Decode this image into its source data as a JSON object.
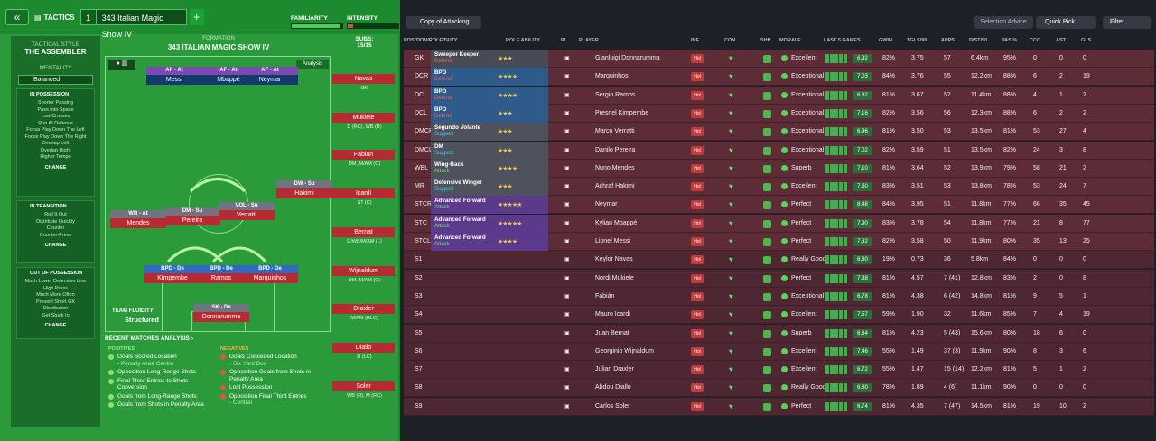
{
  "header": {
    "tactics_label": "TACTICS",
    "slot": "1",
    "name": "343 Italian Magic Show IV",
    "plus": "+",
    "back": "«",
    "familiarity": "FAMILIARITY",
    "intensity": "INTENSITY"
  },
  "style": {
    "style_label": "TACTICAL STYLE",
    "style_value": "THE ASSEMBLER",
    "mentality_label": "MENTALITY",
    "mentality_value": "Balanced",
    "poss": {
      "title": "IN POSSESSION",
      "items": [
        "Shorter Passing",
        "Pass Into Space",
        "Low Crosses",
        "Run At Defence",
        "Focus Play Down The Left",
        "Focus Play Down The Right",
        "Overlap Left",
        "Overlap Right",
        "Higher Tempo"
      ],
      "change": "CHANGE"
    },
    "trans": {
      "title": "IN TRANSITION",
      "items": [
        "Roll It Out",
        "Distribute Quickly",
        "Counter",
        "Counter-Press"
      ],
      "change": "CHANGE"
    },
    "oop": {
      "title": "OUT OF POSSESSION",
      "items": [
        "Much Lower Defensive Line",
        "High Press",
        "Much More Often",
        "Prevent Short GK",
        "Distribution",
        "Get Stuck In"
      ],
      "change": "CHANGE"
    }
  },
  "formation": {
    "label": "FORMATION",
    "name": "343 ITALIAN MAGIC SHOW IV",
    "analysis": "Analysis",
    "fluidity_label": "TEAM FLUIDITY",
    "fluidity_value": "Structured",
    "players": [
      {
        "pos": "AF - At",
        "name": "Messi"
      },
      {
        "pos": "AF - At",
        "name": "Mbappé"
      },
      {
        "pos": "AF - At",
        "name": "Neymar"
      },
      {
        "pos": "DW - Su",
        "name": "Hakimi"
      },
      {
        "pos": "DM - Su",
        "name": "Pereira"
      },
      {
        "pos": "VOL - Su",
        "name": "Verratti"
      },
      {
        "pos": "WB - At",
        "name": "Mendes"
      },
      {
        "pos": "BPD - De",
        "name": "Kimpembe"
      },
      {
        "pos": "BPD - De",
        "name": "Ramos"
      },
      {
        "pos": "BPD - De",
        "name": "Marquinhos"
      },
      {
        "pos": "SK - De",
        "name": "Donnarumma"
      }
    ]
  },
  "subs": {
    "label": "SUBS:",
    "count": "15/15",
    "list": [
      {
        "name": "Navas",
        "pos": "GK"
      },
      {
        "name": "Mukiele",
        "pos": "D (RC), WB (R)"
      },
      {
        "name": "Fabián",
        "pos": "DM, M/AM (C)"
      },
      {
        "name": "Icardi",
        "pos": "ST (C)"
      },
      {
        "name": "Bernat",
        "pos": "D/WB/M/AM (L)"
      },
      {
        "name": "Wijnaldum",
        "pos": "DM, M/AM (C)"
      },
      {
        "name": "Draxler",
        "pos": "M/AM (RLC)"
      },
      {
        "name": "Diallo",
        "pos": "D (LC)"
      },
      {
        "name": "Soler",
        "pos": "WB (R), M (RC)"
      }
    ]
  },
  "recent": {
    "title": "RECENT MATCHES ANALYSIS",
    "arrow": "›",
    "pos_label": "POSITIVES",
    "neg_label": "NEGATIVES",
    "positives": [
      {
        "t": "Goals Scored Location",
        "s": "- Penalty Area Centre"
      },
      {
        "t": "Opposition Long-Range Shots",
        "s": ""
      },
      {
        "t": "Final Third Entries to Shots Conversion",
        "s": ""
      },
      {
        "t": "Goals from Long-Range Shots",
        "s": ""
      },
      {
        "t": "Goals from Shots in Penalty Area",
        "s": ""
      }
    ],
    "negatives": [
      {
        "t": "Goals Conceded Location",
        "s": "- Six Yard Box"
      },
      {
        "t": "Opposition Goals from Shots in Penalty Area",
        "s": ""
      },
      {
        "t": "Lost Possession",
        "s": ""
      },
      {
        "t": "Opposition Final Third Entries",
        "s": "- Central"
      }
    ]
  },
  "toolbar": {
    "copy": "Copy of Attacking",
    "selection": "Selection Advice",
    "quick": "Quick Pick",
    "filter": "Filter"
  },
  "columns": [
    "POSITION/ROLE/DUTY",
    "ROLE ABILITY",
    "PI",
    "PLAYER",
    "INF",
    "CON",
    "SHP",
    "MORALE",
    "LAST 5 GAMES",
    "GWIN",
    "TGLS/90",
    "APPS",
    "DIST/90",
    "PAS %",
    "CCC",
    "AST",
    "GLS"
  ],
  "rows": [
    {
      "pos": "GK",
      "role": "Sweeper Keeper",
      "duty": "Defend",
      "cls": "gk",
      "stars": "★★★",
      "player": "Gianluigi Donnarumma",
      "morale": "Excellent",
      "avg": "6.92",
      "gwin": "82%",
      "tgls": "3.75",
      "apps": "57",
      "dist": "6.4km",
      "pas": "95%",
      "ccc": "0",
      "ast": "0",
      "gls": "0"
    },
    {
      "pos": "DCR",
      "role": "BPD",
      "duty": "Defend",
      "cls": "def",
      "stars": "★★★★",
      "player": "Marquinhos",
      "morale": "Exceptional",
      "avg": "7.03",
      "gwin": "84%",
      "tgls": "3.76",
      "apps": "55",
      "dist": "12.2km",
      "pas": "88%",
      "ccc": "6",
      "ast": "2",
      "gls": "19"
    },
    {
      "pos": "DC",
      "role": "BPD",
      "duty": "Defend",
      "cls": "def",
      "stars": "★★★★",
      "player": "Sergio Ramos",
      "morale": "Exceptional",
      "avg": "6.82",
      "gwin": "81%",
      "tgls": "3.67",
      "apps": "52",
      "dist": "11.4km",
      "pas": "88%",
      "ccc": "4",
      "ast": "1",
      "gls": "2"
    },
    {
      "pos": "DCL",
      "role": "BPD",
      "duty": "Defend",
      "cls": "def",
      "stars": "★★★",
      "player": "Presnel Kimpembe",
      "morale": "Exceptional",
      "avg": "7.16",
      "gwin": "82%",
      "tgls": "3.56",
      "apps": "56",
      "dist": "12.3km",
      "pas": "88%",
      "ccc": "6",
      "ast": "2",
      "gls": "2"
    },
    {
      "pos": "DMCR",
      "role": "Segundo Volante",
      "duty": "Support",
      "cls": "mid",
      "stars": "★★★",
      "player": "Marco Verratti",
      "morale": "Exceptional",
      "avg": "6.96",
      "gwin": "81%",
      "tgls": "3.50",
      "apps": "53",
      "dist": "13.5km",
      "pas": "81%",
      "ccc": "53",
      "ast": "27",
      "gls": "4"
    },
    {
      "pos": "DMCL",
      "role": "DM",
      "duty": "Support",
      "cls": "mid",
      "stars": "★★★",
      "player": "Danilo Pereira",
      "morale": "Exceptional",
      "avg": "7.02",
      "gwin": "82%",
      "tgls": "3.59",
      "apps": "51",
      "dist": "13.5km",
      "pas": "82%",
      "ccc": "24",
      "ast": "3",
      "gls": "8"
    },
    {
      "pos": "WBL",
      "role": "Wing-Back",
      "duty": "Attack",
      "cls": "mid",
      "stars": "★★★★",
      "player": "Nuno Mendes",
      "morale": "Superb",
      "avg": "7.10",
      "gwin": "81%",
      "tgls": "3.64",
      "apps": "52",
      "dist": "13.9km",
      "pas": "79%",
      "ccc": "58",
      "ast": "21",
      "gls": "2"
    },
    {
      "pos": "MR",
      "role": "Defensive Winger",
      "duty": "Support",
      "cls": "mid",
      "stars": "★★★",
      "player": "Achraf Hakimi",
      "morale": "Excellent",
      "avg": "7.60",
      "gwin": "83%",
      "tgls": "3.51",
      "apps": "53",
      "dist": "13.8km",
      "pas": "78%",
      "ccc": "53",
      "ast": "24",
      "gls": "7"
    },
    {
      "pos": "STCR",
      "role": "Advanced Forward",
      "duty": "Attack",
      "cls": "att",
      "stars": "★★★★★",
      "player": "Neymar",
      "morale": "Perfect",
      "avg": "8.48",
      "gwin": "84%",
      "tgls": "3.95",
      "apps": "51",
      "dist": "11.8km",
      "pas": "77%",
      "ccc": "66",
      "ast": "35",
      "gls": "45"
    },
    {
      "pos": "STC",
      "role": "Advanced Forward",
      "duty": "Attack",
      "cls": "att",
      "stars": "★★★★★",
      "player": "Kylian Mbappé",
      "morale": "Perfect",
      "avg": "7.90",
      "gwin": "83%",
      "tgls": "3.78",
      "apps": "54",
      "dist": "11.8km",
      "pas": "77%",
      "ccc": "21",
      "ast": "8",
      "gls": "77"
    },
    {
      "pos": "STCL",
      "role": "Advanced Forward",
      "duty": "Attack",
      "cls": "att",
      "stars": "★★★★",
      "player": "Lionel Messi",
      "morale": "Perfect",
      "avg": "7.32",
      "gwin": "82%",
      "tgls": "3.58",
      "apps": "50",
      "dist": "11.9km",
      "pas": "80%",
      "ccc": "35",
      "ast": "13",
      "gls": "25"
    },
    {
      "pos": "S1",
      "role": "",
      "duty": "",
      "cls": "sub",
      "stars": "",
      "player": "Keylor Navas",
      "morale": "Really Good",
      "avg": "6.80",
      "gwin": "19%",
      "tgls": "0.73",
      "apps": "36",
      "dist": "5.8km",
      "pas": "84%",
      "ccc": "0",
      "ast": "0",
      "gls": "0"
    },
    {
      "pos": "S2",
      "role": "",
      "duty": "",
      "cls": "sub",
      "stars": "",
      "player": "Nordi Mukiele",
      "morale": "Perfect",
      "avg": "7.38",
      "gwin": "81%",
      "tgls": "4.57",
      "apps": "7 (41)",
      "dist": "12.8km",
      "pas": "83%",
      "ccc": "2",
      "ast": "0",
      "gls": "8"
    },
    {
      "pos": "S3",
      "role": "",
      "duty": "",
      "cls": "sub",
      "stars": "",
      "player": "Fabián",
      "morale": "Exceptional",
      "avg": "6.78",
      "gwin": "81%",
      "tgls": "4.38",
      "apps": "6 (42)",
      "dist": "14.8km",
      "pas": "81%",
      "ccc": "9",
      "ast": "5",
      "gls": "1"
    },
    {
      "pos": "S4",
      "role": "",
      "duty": "",
      "cls": "sub",
      "stars": "",
      "player": "Mauro Icardi",
      "morale": "Excellent",
      "avg": "7.57",
      "gwin": "59%",
      "tgls": "1.90",
      "apps": "32",
      "dist": "11.6km",
      "pas": "85%",
      "ccc": "7",
      "ast": "4",
      "gls": "19"
    },
    {
      "pos": "S5",
      "role": "",
      "duty": "",
      "cls": "sub",
      "stars": "",
      "player": "Juan Bernat",
      "morale": "Superb",
      "avg": "6.84",
      "gwin": "81%",
      "tgls": "4.23",
      "apps": "5 (43)",
      "dist": "15.6km",
      "pas": "80%",
      "ccc": "18",
      "ast": "6",
      "gls": "0"
    },
    {
      "pos": "S6",
      "role": "",
      "duty": "",
      "cls": "sub",
      "stars": "",
      "player": "Georginio Wijnaldum",
      "morale": "Excellent",
      "avg": "7.46",
      "gwin": "55%",
      "tgls": "1.49",
      "apps": "37 (3)",
      "dist": "11.9km",
      "pas": "90%",
      "ccc": "8",
      "ast": "3",
      "gls": "6"
    },
    {
      "pos": "S7",
      "role": "",
      "duty": "",
      "cls": "sub",
      "stars": "",
      "player": "Julian Draxler",
      "morale": "Excellent",
      "avg": "6.72",
      "gwin": "55%",
      "tgls": "1.47",
      "apps": "15 (14)",
      "dist": "12.2km",
      "pas": "81%",
      "ccc": "5",
      "ast": "1",
      "gls": "2"
    },
    {
      "pos": "S8",
      "role": "",
      "duty": "",
      "cls": "sub",
      "stars": "",
      "player": "Abdou Diallo",
      "morale": "Really Good",
      "avg": "6.80",
      "gwin": "78%",
      "tgls": "1.89",
      "apps": "4 (6)",
      "dist": "11.1km",
      "pas": "90%",
      "ccc": "0",
      "ast": "0",
      "gls": "0"
    },
    {
      "pos": "S9",
      "role": "",
      "duty": "",
      "cls": "sub",
      "stars": "",
      "player": "Carlos Soler",
      "morale": "Perfect",
      "avg": "6.74",
      "gwin": "81%",
      "tgls": "4.35",
      "apps": "7 (47)",
      "dist": "14.5km",
      "pas": "81%",
      "ccc": "19",
      "ast": "10",
      "gls": "2"
    }
  ],
  "colors": {
    "pitch": "#2a9a3a",
    "defend": "#ef5d5d",
    "support": "#4fc3f7",
    "attack": "#6ee06e"
  }
}
